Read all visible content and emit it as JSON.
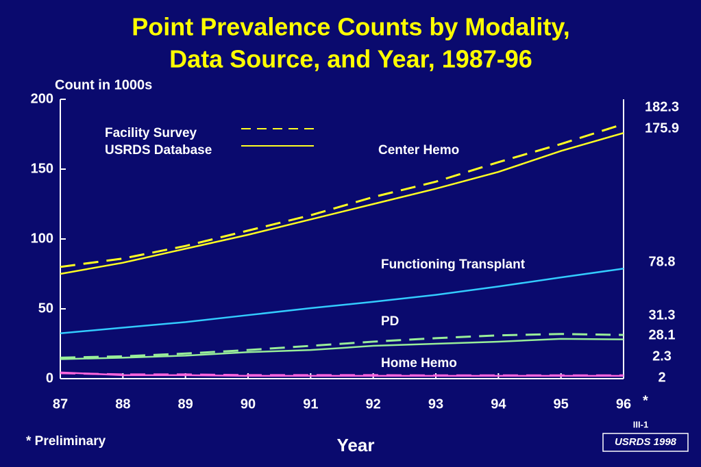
{
  "chart_data": {
    "type": "line",
    "title_lines": [
      "Point Prevalence Counts by Modality,",
      "Data Source, and Year, 1987-96"
    ],
    "y_label": "Count in 1000s",
    "x_label": "Year",
    "categories": [
      "87",
      "88",
      "89",
      "90",
      "91",
      "92",
      "93",
      "94",
      "95",
      "96"
    ],
    "last_category_mark": "*",
    "ylim": [
      0,
      200
    ],
    "yticks": [
      0,
      50,
      100,
      150,
      200
    ],
    "legend": [
      {
        "label": "Facility Survey",
        "dashed": true
      },
      {
        "label": "USRDS Database",
        "dashed": false
      }
    ],
    "modalities": [
      {
        "name": "Center Hemo",
        "color": "#ffff22",
        "series": [
          {
            "legend": 0,
            "values": [
              80,
              86,
              95,
              106,
              117,
              130,
              141,
              155,
              168,
              182.3
            ]
          },
          {
            "legend": 1,
            "values": [
              75,
              83,
              93,
              103,
              114,
              125,
              136,
              148,
              163,
              175.9
            ]
          }
        ]
      },
      {
        "name": "Functioning Transplant",
        "color": "#33ccff",
        "series": [
          {
            "legend": 1,
            "values": [
              32.5,
              36.5,
              40.5,
              45.5,
              50.5,
              55,
              60,
              66,
              72.5,
              78.8
            ]
          }
        ]
      },
      {
        "name": "PD",
        "color": "#99ee99",
        "series": [
          {
            "legend": 0,
            "values": [
              15,
              16,
              18,
              20.5,
              23.5,
              26.5,
              29,
              31,
              32,
              31.3
            ]
          },
          {
            "legend": 1,
            "values": [
              14,
              15,
              16.5,
              19,
              20.5,
              23.5,
              25,
              26.5,
              28.5,
              28.1
            ]
          }
        ]
      },
      {
        "name": "Home Hemo",
        "color": "#ff66dd",
        "series": [
          {
            "legend": 0,
            "values": [
              4,
              3,
              3,
              2.5,
              2.5,
              2.5,
              2.3,
              2.3,
              2.3,
              2.3
            ]
          },
          {
            "legend": 1,
            "values": [
              4.5,
              2.5,
              2.5,
              2,
              2,
              2,
              2,
              2,
              2,
              2
            ]
          }
        ]
      }
    ],
    "footnote": "* Preliminary",
    "page_code": "III-1",
    "source": "USRDS 1998"
  }
}
